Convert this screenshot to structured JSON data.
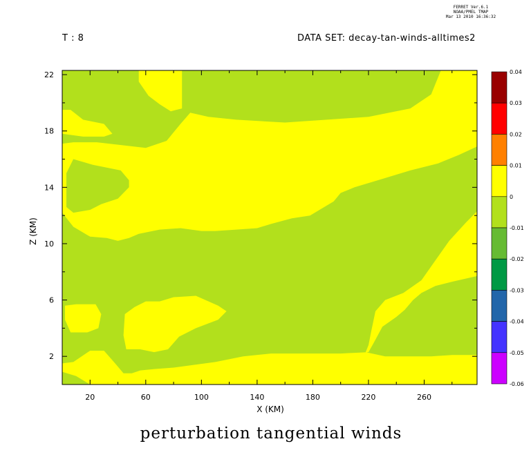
{
  "header": {
    "time_label": "T : 8",
    "dataset_label": "DATA SET: decay-tan-winds-alltimes2",
    "meta_line1": "FERRET  Ver.6.1",
    "meta_line2": "NOAA/PMEL TMAP",
    "meta_line3": "Mar 13 2010 16:36:32"
  },
  "chart_data": {
    "type": "heatmap",
    "title": "perturbation tangential winds",
    "xlabel": "X (KM)",
    "ylabel": "Z (KM)",
    "xlim": [
      0,
      298
    ],
    "ylim": [
      0,
      22.3
    ],
    "x_ticks": [
      20,
      60,
      100,
      140,
      180,
      220,
      260
    ],
    "y_ticks": [
      2,
      6,
      10,
      14,
      18,
      22
    ],
    "background_level": "-0.01 to 0",
    "regions": [
      {
        "name": "upper-right band",
        "level": "0 to 0.01",
        "points": [
          [
            0,
            17.1
          ],
          [
            8,
            17.2
          ],
          [
            25,
            17.2
          ],
          [
            60,
            16.8
          ],
          [
            75,
            17.3
          ],
          [
            85,
            18.5
          ],
          [
            92,
            19.3
          ],
          [
            105,
            19.0
          ],
          [
            125,
            18.8
          ],
          [
            160,
            18.6
          ],
          [
            190,
            18.8
          ],
          [
            220,
            19.0
          ],
          [
            250,
            19.6
          ],
          [
            265,
            20.6
          ],
          [
            272,
            22.3
          ],
          [
            298,
            22.3
          ],
          [
            298,
            16.9
          ],
          [
            285,
            16.3
          ],
          [
            270,
            15.7
          ],
          [
            250,
            15.2
          ],
          [
            230,
            14.6
          ],
          [
            210,
            14.0
          ],
          [
            200,
            13.6
          ],
          [
            195,
            13.0
          ],
          [
            178,
            12.0
          ],
          [
            165,
            11.8
          ],
          [
            150,
            11.4
          ],
          [
            140,
            11.1
          ],
          [
            125,
            11.0
          ],
          [
            110,
            10.9
          ],
          [
            100,
            10.9
          ],
          [
            85,
            11.1
          ],
          [
            70,
            11.0
          ],
          [
            55,
            10.7
          ],
          [
            48,
            10.4
          ],
          [
            40,
            10.2
          ],
          [
            32,
            10.4
          ],
          [
            20,
            10.5
          ],
          [
            8,
            11.2
          ],
          [
            0,
            12.2
          ]
        ]
      },
      {
        "name": "left-mid tongue",
        "level": "-0.01 to 0",
        "points": [
          [
            8,
            16.0
          ],
          [
            22,
            15.6
          ],
          [
            42,
            15.2
          ],
          [
            48,
            14.5
          ],
          [
            48,
            14.0
          ],
          [
            40,
            13.2
          ],
          [
            28,
            12.8
          ],
          [
            20,
            12.4
          ],
          [
            8,
            12.2
          ],
          [
            3,
            12.6
          ],
          [
            3,
            15.0
          ]
        ]
      },
      {
        "name": "upper-left patch",
        "level": "0 to 0.01",
        "points": [
          [
            55,
            22.3
          ],
          [
            86,
            22.3
          ],
          [
            86,
            19.6
          ],
          [
            78,
            19.4
          ],
          [
            70,
            19.9
          ],
          [
            62,
            20.5
          ],
          [
            55,
            21.5
          ]
        ]
      },
      {
        "name": "top-left strip",
        "level": "0 to 0.01",
        "points": [
          [
            0,
            19.5
          ],
          [
            6,
            19.5
          ],
          [
            15,
            18.8
          ],
          [
            30,
            18.5
          ],
          [
            36,
            17.8
          ],
          [
            30,
            17.6
          ],
          [
            15,
            17.6
          ],
          [
            0,
            17.8
          ]
        ]
      },
      {
        "name": "lower-left patch",
        "level": "0 to 0.01",
        "points": [
          [
            45,
            5.0
          ],
          [
            52,
            5.5
          ],
          [
            60,
            5.9
          ],
          [
            70,
            5.9
          ],
          [
            80,
            6.2
          ],
          [
            96,
            6.3
          ],
          [
            112,
            5.6
          ],
          [
            118,
            5.2
          ],
          [
            112,
            4.6
          ],
          [
            96,
            4.0
          ],
          [
            84,
            3.4
          ],
          [
            76,
            2.5
          ],
          [
            66,
            2.3
          ],
          [
            56,
            2.5
          ],
          [
            46,
            2.5
          ],
          [
            44,
            3.5
          ]
        ]
      },
      {
        "name": "small left blob",
        "level": "0 to 0.01",
        "points": [
          [
            2,
            5.6
          ],
          [
            10,
            5.7
          ],
          [
            24,
            5.7
          ],
          [
            28,
            5.0
          ],
          [
            26,
            4.0
          ],
          [
            18,
            3.7
          ],
          [
            6,
            3.7
          ],
          [
            2,
            4.6
          ]
        ]
      },
      {
        "name": "bottom band",
        "level": "0 to 0.01",
        "points": [
          [
            0,
            0
          ],
          [
            0,
            1.5
          ],
          [
            8,
            1.6
          ],
          [
            20,
            2.4
          ],
          [
            30,
            2.4
          ],
          [
            38,
            1.5
          ],
          [
            44,
            0.8
          ],
          [
            50,
            0.8
          ],
          [
            56,
            1.0
          ],
          [
            66,
            1.1
          ],
          [
            80,
            1.2
          ],
          [
            110,
            1.6
          ],
          [
            130,
            2.0
          ],
          [
            150,
            2.2
          ],
          [
            180,
            2.2
          ],
          [
            200,
            2.2
          ],
          [
            220,
            2.3
          ],
          [
            224,
            3.0
          ],
          [
            230,
            4.1
          ],
          [
            240,
            4.8
          ],
          [
            246,
            5.3
          ],
          [
            252,
            6.0
          ],
          [
            258,
            6.5
          ],
          [
            268,
            7.0
          ],
          [
            280,
            7.3
          ],
          [
            298,
            7.7
          ],
          [
            298,
            12.3
          ],
          [
            290,
            11.5
          ],
          [
            278,
            10.2
          ],
          [
            268,
            8.8
          ],
          [
            258,
            7.4
          ],
          [
            245,
            6.5
          ],
          [
            232,
            6.0
          ],
          [
            225,
            5.2
          ],
          [
            222,
            3.8
          ],
          [
            220,
            2.8
          ],
          [
            218,
            2.3
          ],
          [
            232,
            2.0
          ],
          [
            250,
            2.0
          ],
          [
            265,
            2.0
          ],
          [
            280,
            2.1
          ],
          [
            298,
            2.1
          ],
          [
            298,
            0
          ]
        ]
      },
      {
        "name": "bottom-left sliver",
        "level": "-0.01 to 0",
        "points": [
          [
            0,
            0
          ],
          [
            20,
            0
          ],
          [
            10,
            0.6
          ],
          [
            0,
            0.9
          ]
        ]
      }
    ],
    "colorbar": {
      "levels": [
        "0.04",
        "0.03",
        "0.02",
        "0.01",
        "0",
        "-0.01",
        "-0.02",
        "-0.03",
        "-0.04",
        "-0.05",
        "-0.06"
      ],
      "colors": [
        "#990000",
        "#ff0000",
        "#ff8000",
        "#ffff00",
        "#b2e01c",
        "#66bb33",
        "#009944",
        "#2266aa",
        "#4433ff",
        "#cc00ff"
      ]
    }
  }
}
